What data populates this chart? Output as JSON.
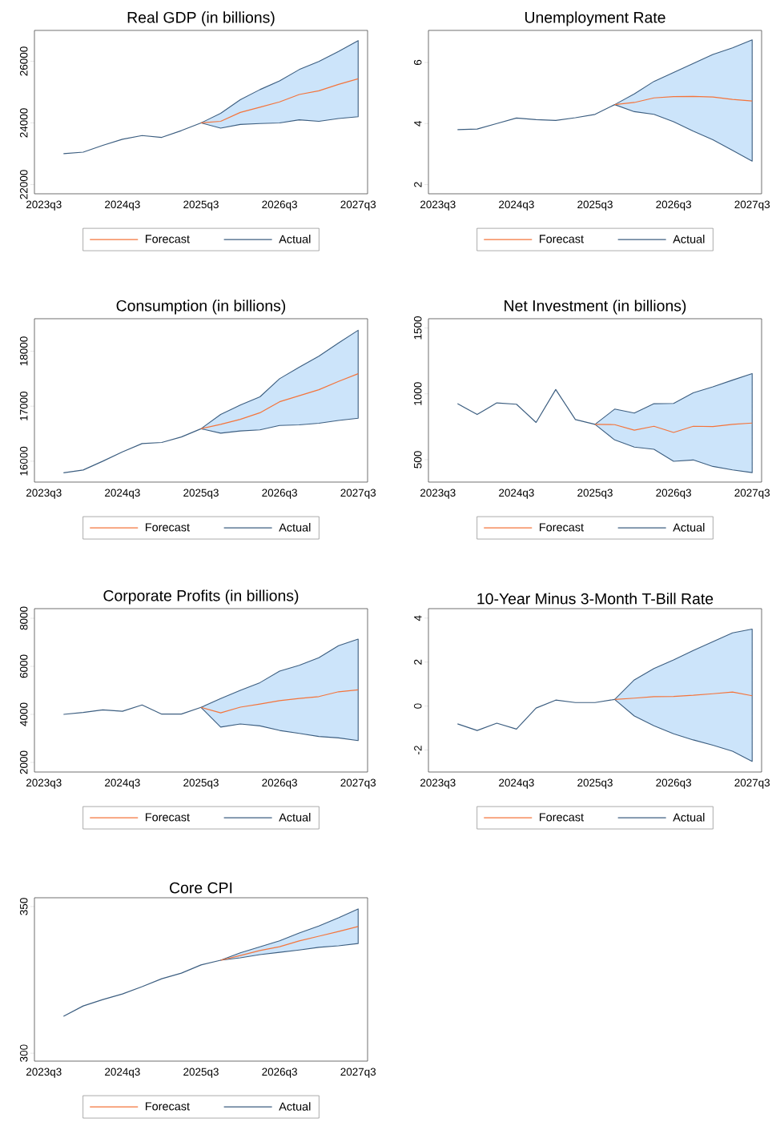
{
  "chart_data": [
    {
      "type": "line",
      "title": "Real GDP (in billions)",
      "legend": "bottom",
      "ylim": [
        21700,
        27000
      ],
      "yticks": [
        22000,
        24000,
        26000
      ],
      "categories": [
        "2023q3",
        null,
        null,
        null,
        "2024q3",
        null,
        null,
        null,
        "2025q3",
        null,
        null,
        null,
        "2026q3",
        null,
        null,
        null,
        "2027q3"
      ],
      "series": [
        {
          "name": "Forecast",
          "color": "#f4743b",
          "values": [
            null,
            null,
            null,
            null,
            null,
            null,
            null,
            null,
            24000,
            24050,
            24340,
            24510,
            24680,
            24920,
            25040,
            25250,
            25430
          ],
          "lower": [
            null,
            null,
            null,
            null,
            null,
            null,
            null,
            null,
            24000,
            23830,
            23950,
            23980,
            24000,
            24100,
            24050,
            24140,
            24200
          ],
          "upper": [
            null,
            null,
            null,
            null,
            null,
            null,
            null,
            null,
            24000,
            24310,
            24750,
            25080,
            25360,
            25730,
            25990,
            26320,
            26670
          ]
        },
        {
          "name": "Actual",
          "color": "#3c5e80",
          "values": [
            null,
            23000,
            23050,
            23270,
            23470,
            23590,
            23530,
            23750,
            24000,
            null,
            null,
            null,
            null,
            null,
            null,
            null,
            null
          ]
        }
      ]
    },
    {
      "type": "line",
      "title": "Unemployment Rate",
      "legend": "bottom",
      "ylim": [
        1.7,
        7.05
      ],
      "yticks": [
        2,
        4,
        6
      ],
      "categories": [
        "2023q3",
        null,
        null,
        null,
        "2024q3",
        null,
        null,
        null,
        "2025q3",
        null,
        null,
        null,
        "2026q3",
        null,
        null,
        null,
        "2027q3"
      ],
      "series": [
        {
          "name": "Forecast",
          "color": "#f4743b",
          "values": [
            null,
            null,
            null,
            null,
            null,
            null,
            null,
            null,
            null,
            4.62,
            4.69,
            4.84,
            4.88,
            4.89,
            4.87,
            4.79,
            4.74
          ],
          "lower": [
            null,
            null,
            null,
            null,
            null,
            null,
            null,
            null,
            null,
            4.62,
            4.39,
            4.3,
            4.06,
            3.75,
            3.47,
            3.12,
            2.77
          ],
          "upper": [
            null,
            null,
            null,
            null,
            null,
            null,
            null,
            null,
            null,
            4.62,
            4.97,
            5.38,
            5.67,
            5.97,
            6.26,
            6.48,
            6.74
          ]
        },
        {
          "name": "Actual",
          "color": "#3c5e80",
          "values": [
            null,
            3.8,
            3.82,
            4.0,
            4.18,
            4.13,
            4.1,
            4.19,
            4.3,
            4.62,
            null,
            null,
            null,
            null,
            null,
            null,
            null
          ]
        }
      ]
    },
    {
      "type": "line",
      "title": "Consumption (in billions)",
      "legend": "bottom",
      "ylim": [
        15620,
        18590
      ],
      "yticks": [
        16000,
        17000,
        18000
      ],
      "categories": [
        "2023q3",
        null,
        null,
        null,
        "2024q3",
        null,
        null,
        null,
        "2025q3",
        null,
        null,
        null,
        "2026q3",
        null,
        null,
        null,
        "2027q3"
      ],
      "series": [
        {
          "name": "Forecast",
          "color": "#f4743b",
          "values": [
            null,
            null,
            null,
            null,
            null,
            null,
            null,
            null,
            16590,
            16670,
            16760,
            16880,
            17080,
            17190,
            17300,
            17450,
            17590
          ],
          "lower": [
            null,
            null,
            null,
            null,
            null,
            null,
            null,
            null,
            16590,
            16510,
            16550,
            16570,
            16650,
            16660,
            16690,
            16740,
            16780
          ],
          "upper": [
            null,
            null,
            null,
            null,
            null,
            null,
            null,
            null,
            16590,
            16850,
            17020,
            17170,
            17500,
            17710,
            17910,
            18150,
            18380
          ]
        },
        {
          "name": "Actual",
          "color": "#3c5e80",
          "values": [
            null,
            15790,
            15840,
            16000,
            16170,
            16320,
            16340,
            16440,
            16590,
            null,
            null,
            null,
            null,
            null,
            null,
            null,
            null
          ]
        }
      ]
    },
    {
      "type": "line",
      "title": "Net Investment (in billions)",
      "legend": "bottom",
      "ylim": [
        330,
        1570
      ],
      "yticks": [
        500,
        1000,
        1500
      ],
      "categories": [
        "2023q3",
        null,
        null,
        null,
        "2024q3",
        null,
        null,
        null,
        "2025q3",
        null,
        null,
        null,
        "2026q3",
        null,
        null,
        null,
        "2027q3"
      ],
      "series": [
        {
          "name": "Forecast",
          "color": "#f4743b",
          "values": [
            null,
            null,
            null,
            null,
            null,
            null,
            null,
            null,
            768,
            766,
            724,
            754,
            707,
            754,
            752,
            768,
            778
          ],
          "lower": [
            null,
            null,
            null,
            null,
            null,
            null,
            null,
            null,
            768,
            650,
            596,
            579,
            488,
            498,
            449,
            423,
            402
          ],
          "upper": [
            null,
            null,
            null,
            null,
            null,
            null,
            null,
            null,
            768,
            884,
            854,
            925,
            927,
            1008,
            1053,
            1104,
            1154
          ]
        },
        {
          "name": "Actual",
          "color": "#3c5e80",
          "values": [
            null,
            925,
            843,
            931,
            921,
            783,
            1033,
            805,
            768,
            null,
            null,
            null,
            null,
            null,
            null,
            null,
            null
          ]
        }
      ]
    },
    {
      "type": "line",
      "title": "Corporate Profits (in billions)",
      "legend": "bottom",
      "ylim": [
        1600,
        8400
      ],
      "yticks": [
        2000,
        4000,
        6000,
        8000
      ],
      "categories": [
        "2023q3",
        null,
        null,
        null,
        "2024q3",
        null,
        null,
        null,
        "2025q3",
        null,
        null,
        null,
        "2026q3",
        null,
        null,
        null,
        "2027q3"
      ],
      "series": [
        {
          "name": "Forecast",
          "color": "#f4743b",
          "values": [
            null,
            null,
            null,
            null,
            null,
            null,
            null,
            null,
            4290,
            4060,
            4300,
            4430,
            4570,
            4660,
            4740,
            4940,
            5020
          ],
          "lower": [
            null,
            null,
            null,
            null,
            null,
            null,
            null,
            null,
            4290,
            3470,
            3600,
            3520,
            3330,
            3210,
            3080,
            3020,
            2910
          ],
          "upper": [
            null,
            null,
            null,
            null,
            null,
            null,
            null,
            null,
            4290,
            4660,
            5000,
            5320,
            5800,
            6040,
            6360,
            6860,
            7130
          ]
        },
        {
          "name": "Actual",
          "color": "#3c5e80",
          "values": [
            null,
            4000,
            4080,
            4190,
            4130,
            4390,
            4010,
            4010,
            4290,
            null,
            null,
            null,
            null,
            null,
            null,
            null,
            null
          ]
        }
      ]
    },
    {
      "type": "line",
      "title": "10-Year Minus 3-Month T-Bill Rate",
      "legend": "bottom",
      "ylim": [
        -3.0,
        4.43
      ],
      "yticks": [
        -2,
        0,
        2,
        4
      ],
      "categories": [
        "2023q3",
        null,
        null,
        null,
        "2024q3",
        null,
        null,
        null,
        "2025q3",
        null,
        null,
        null,
        "2026q3",
        null,
        null,
        null,
        "2027q3"
      ],
      "series": [
        {
          "name": "Forecast",
          "color": "#f4743b",
          "values": [
            null,
            null,
            null,
            null,
            null,
            null,
            null,
            null,
            null,
            0.3,
            0.36,
            0.43,
            0.44,
            0.49,
            0.56,
            0.64,
            0.47
          ],
          "lower": [
            null,
            null,
            null,
            null,
            null,
            null,
            null,
            null,
            null,
            0.3,
            -0.45,
            -0.9,
            -1.26,
            -1.54,
            -1.78,
            -2.05,
            -2.52
          ],
          "upper": [
            null,
            null,
            null,
            null,
            null,
            null,
            null,
            null,
            null,
            0.3,
            1.19,
            1.71,
            2.1,
            2.53,
            2.93,
            3.33,
            3.5
          ]
        },
        {
          "name": "Actual",
          "color": "#3c5e80",
          "values": [
            null,
            -0.81,
            -1.11,
            -0.78,
            -1.05,
            -0.09,
            0.27,
            0.16,
            0.16,
            0.3,
            null,
            null,
            null,
            null,
            null,
            null,
            null
          ]
        }
      ]
    },
    {
      "type": "line",
      "title": "Core CPI",
      "legend": "bottom",
      "ylim": [
        297.3,
        353
      ],
      "yticks": [
        300,
        350
      ],
      "categories": [
        "2023q3",
        null,
        null,
        null,
        "2024q3",
        null,
        null,
        null,
        "2025q3",
        null,
        null,
        null,
        "2026q3",
        null,
        null,
        null,
        "2027q3"
      ],
      "series": [
        {
          "name": "Forecast",
          "color": "#f4743b",
          "values": [
            null,
            null,
            null,
            null,
            null,
            null,
            null,
            null,
            null,
            331.7,
            333.3,
            335.0,
            336.3,
            338.3,
            339.9,
            341.5,
            343.2
          ],
          "lower": [
            null,
            null,
            null,
            null,
            null,
            null,
            null,
            null,
            null,
            331.7,
            332.5,
            333.6,
            334.4,
            335.2,
            336.1,
            336.6,
            337.4
          ],
          "upper": [
            null,
            null,
            null,
            null,
            null,
            null,
            null,
            null,
            null,
            331.7,
            334.2,
            336.3,
            338.3,
            341.0,
            343.4,
            346.2,
            349.2
          ]
        },
        {
          "name": "Actual",
          "color": "#3c5e80",
          "values": [
            null,
            312.6,
            316.1,
            318.3,
            320.2,
            322.7,
            325.4,
            327.3,
            330.1,
            331.7,
            null,
            null,
            null,
            null,
            null,
            null,
            null
          ]
        }
      ]
    }
  ]
}
